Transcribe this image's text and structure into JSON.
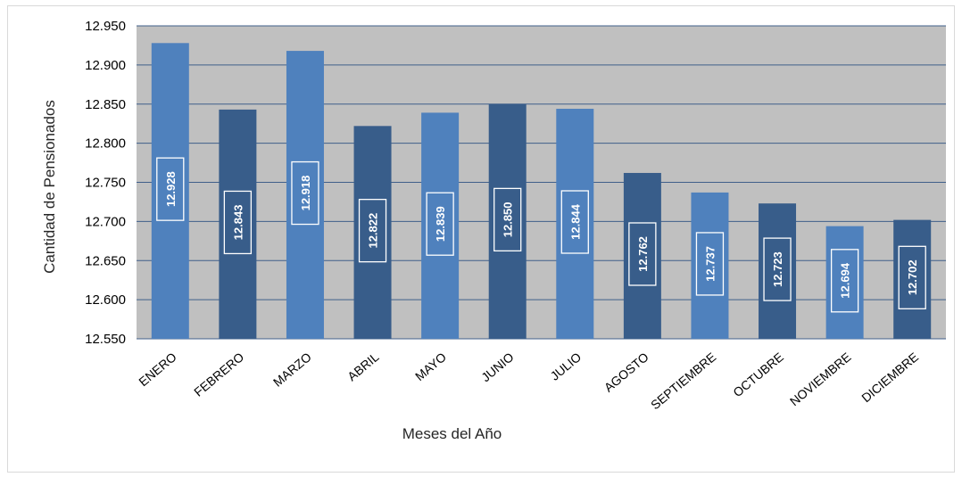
{
  "chart_data": {
    "type": "bar",
    "title": "",
    "xlabel": "Meses del Año",
    "ylabel": "Cantidad de Pensionados",
    "ylim": [
      12550,
      12950
    ],
    "ytick_step": 50,
    "ytick_labels": [
      "12.550",
      "12.600",
      "12.650",
      "12.700",
      "12.750",
      "12.800",
      "12.850",
      "12.900",
      "12.950"
    ],
    "categories": [
      "ENERO",
      "FEBRERO",
      "MARZO",
      "ABRIL",
      "MAYO",
      "JUNIO",
      "JULIO",
      "AGOSTO",
      "SEPTIEMBRE",
      "OCTUBRE",
      "NOVIEMBRE",
      "DICIEMBRE"
    ],
    "values": [
      12928,
      12843,
      12918,
      12822,
      12839,
      12850,
      12844,
      12762,
      12737,
      12723,
      12694,
      12702
    ],
    "data_labels": [
      "12.928",
      "12.843",
      "12.918",
      "12.822",
      "12.839",
      "12.850",
      "12.844",
      "12.762",
      "12.737",
      "12.723",
      "12.694",
      "12.702"
    ],
    "grid": true,
    "legend": "none",
    "colors": {
      "plot_background": "#c0c0c0",
      "gridline": "#3f5f8a",
      "bar_light": "#4f81bd",
      "bar_dark": "#385d8a",
      "label_box_border": "#ffffff"
    }
  }
}
